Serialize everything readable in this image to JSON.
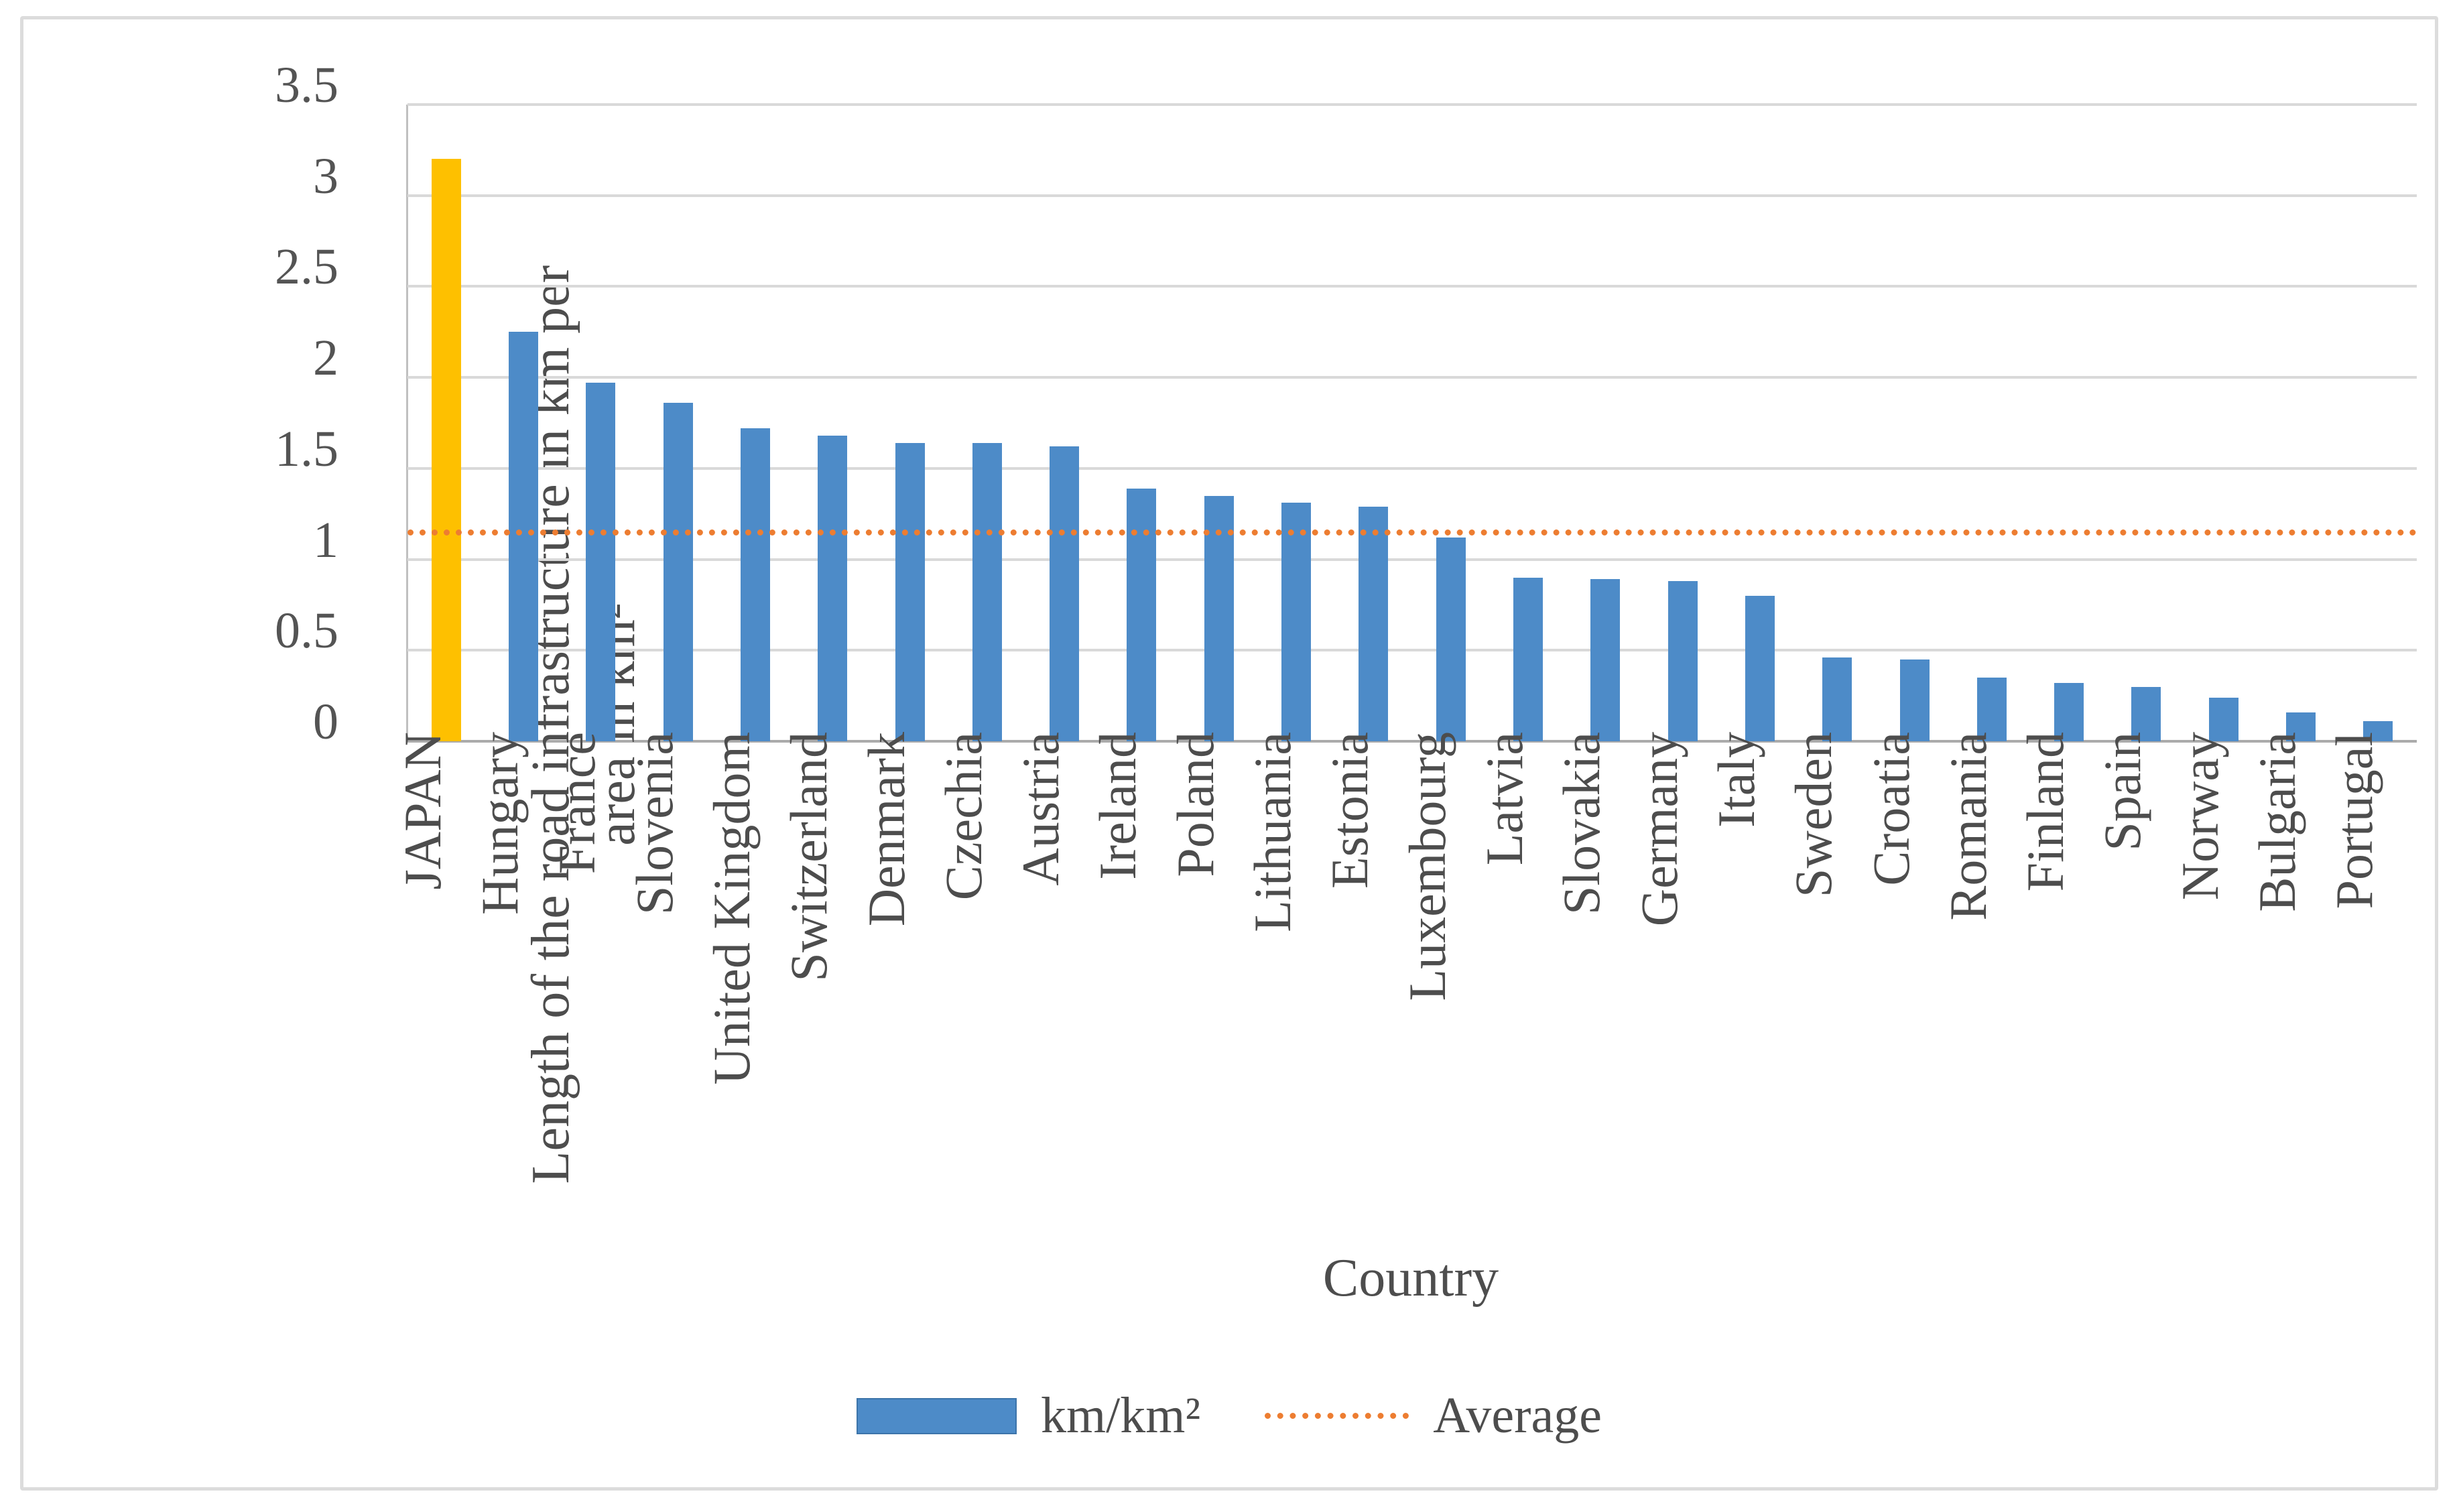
{
  "figure": {
    "y_axis": {
      "title_line1": "Length of the road infrastructure in km per",
      "title_line2": "area in km²",
      "ticks": [
        "3.5",
        "3",
        "2.5",
        "2",
        "1.5",
        "1",
        "0.5",
        "0"
      ]
    },
    "x_axis": {
      "title": "Country"
    },
    "legend": [
      {
        "swatch": "bar-swatch",
        "label": "km/km²"
      },
      {
        "swatch": "dotted-line-swatch",
        "label": "Average"
      }
    ]
  },
  "chart_data": {
    "type": "bar",
    "title": "",
    "xlabel": "Country",
    "ylabel": "Length of the road infrastructure in km per area in km²",
    "ylim": [
      0,
      3.5
    ],
    "ytick_step": 0.5,
    "grid": true,
    "legend_position": "bottom",
    "categories": [
      "JAPAN",
      "Hungary",
      "France",
      "Slovenia",
      "United Kingdom",
      "Switzerland",
      "Denmark",
      "Czechia",
      "Austria",
      "Ireland",
      "Poland",
      "Lithuania",
      "Estonia",
      "Luxembourg",
      "Latvia",
      "Slovakia",
      "Germany",
      "Italy",
      "Sweden",
      "Croatia",
      "Romania",
      "Finland",
      "Spain",
      "Norway",
      "Bulgaria",
      "Portugal"
    ],
    "series": [
      {
        "name": "km/km²",
        "values": [
          3.2,
          2.25,
          1.97,
          1.86,
          1.72,
          1.68,
          1.64,
          1.64,
          1.62,
          1.39,
          1.35,
          1.31,
          1.29,
          1.12,
          0.9,
          0.89,
          0.88,
          0.8,
          0.46,
          0.45,
          0.35,
          0.32,
          0.3,
          0.24,
          0.16,
          0.11
        ]
      }
    ],
    "highlight": {
      "category": "JAPAN",
      "color": "#fec000"
    },
    "average_line": {
      "name": "Average",
      "value": 1.15,
      "style": "dotted"
    }
  },
  "colors": {
    "bar_blue": "#4d8bc8",
    "bar_gold": "#fec000",
    "average_orange": "#ed7d31",
    "gridline_gray": "#d9d9d9",
    "text_gray": "#4d4d4d",
    "frame_gray": "#dcdcdc"
  }
}
